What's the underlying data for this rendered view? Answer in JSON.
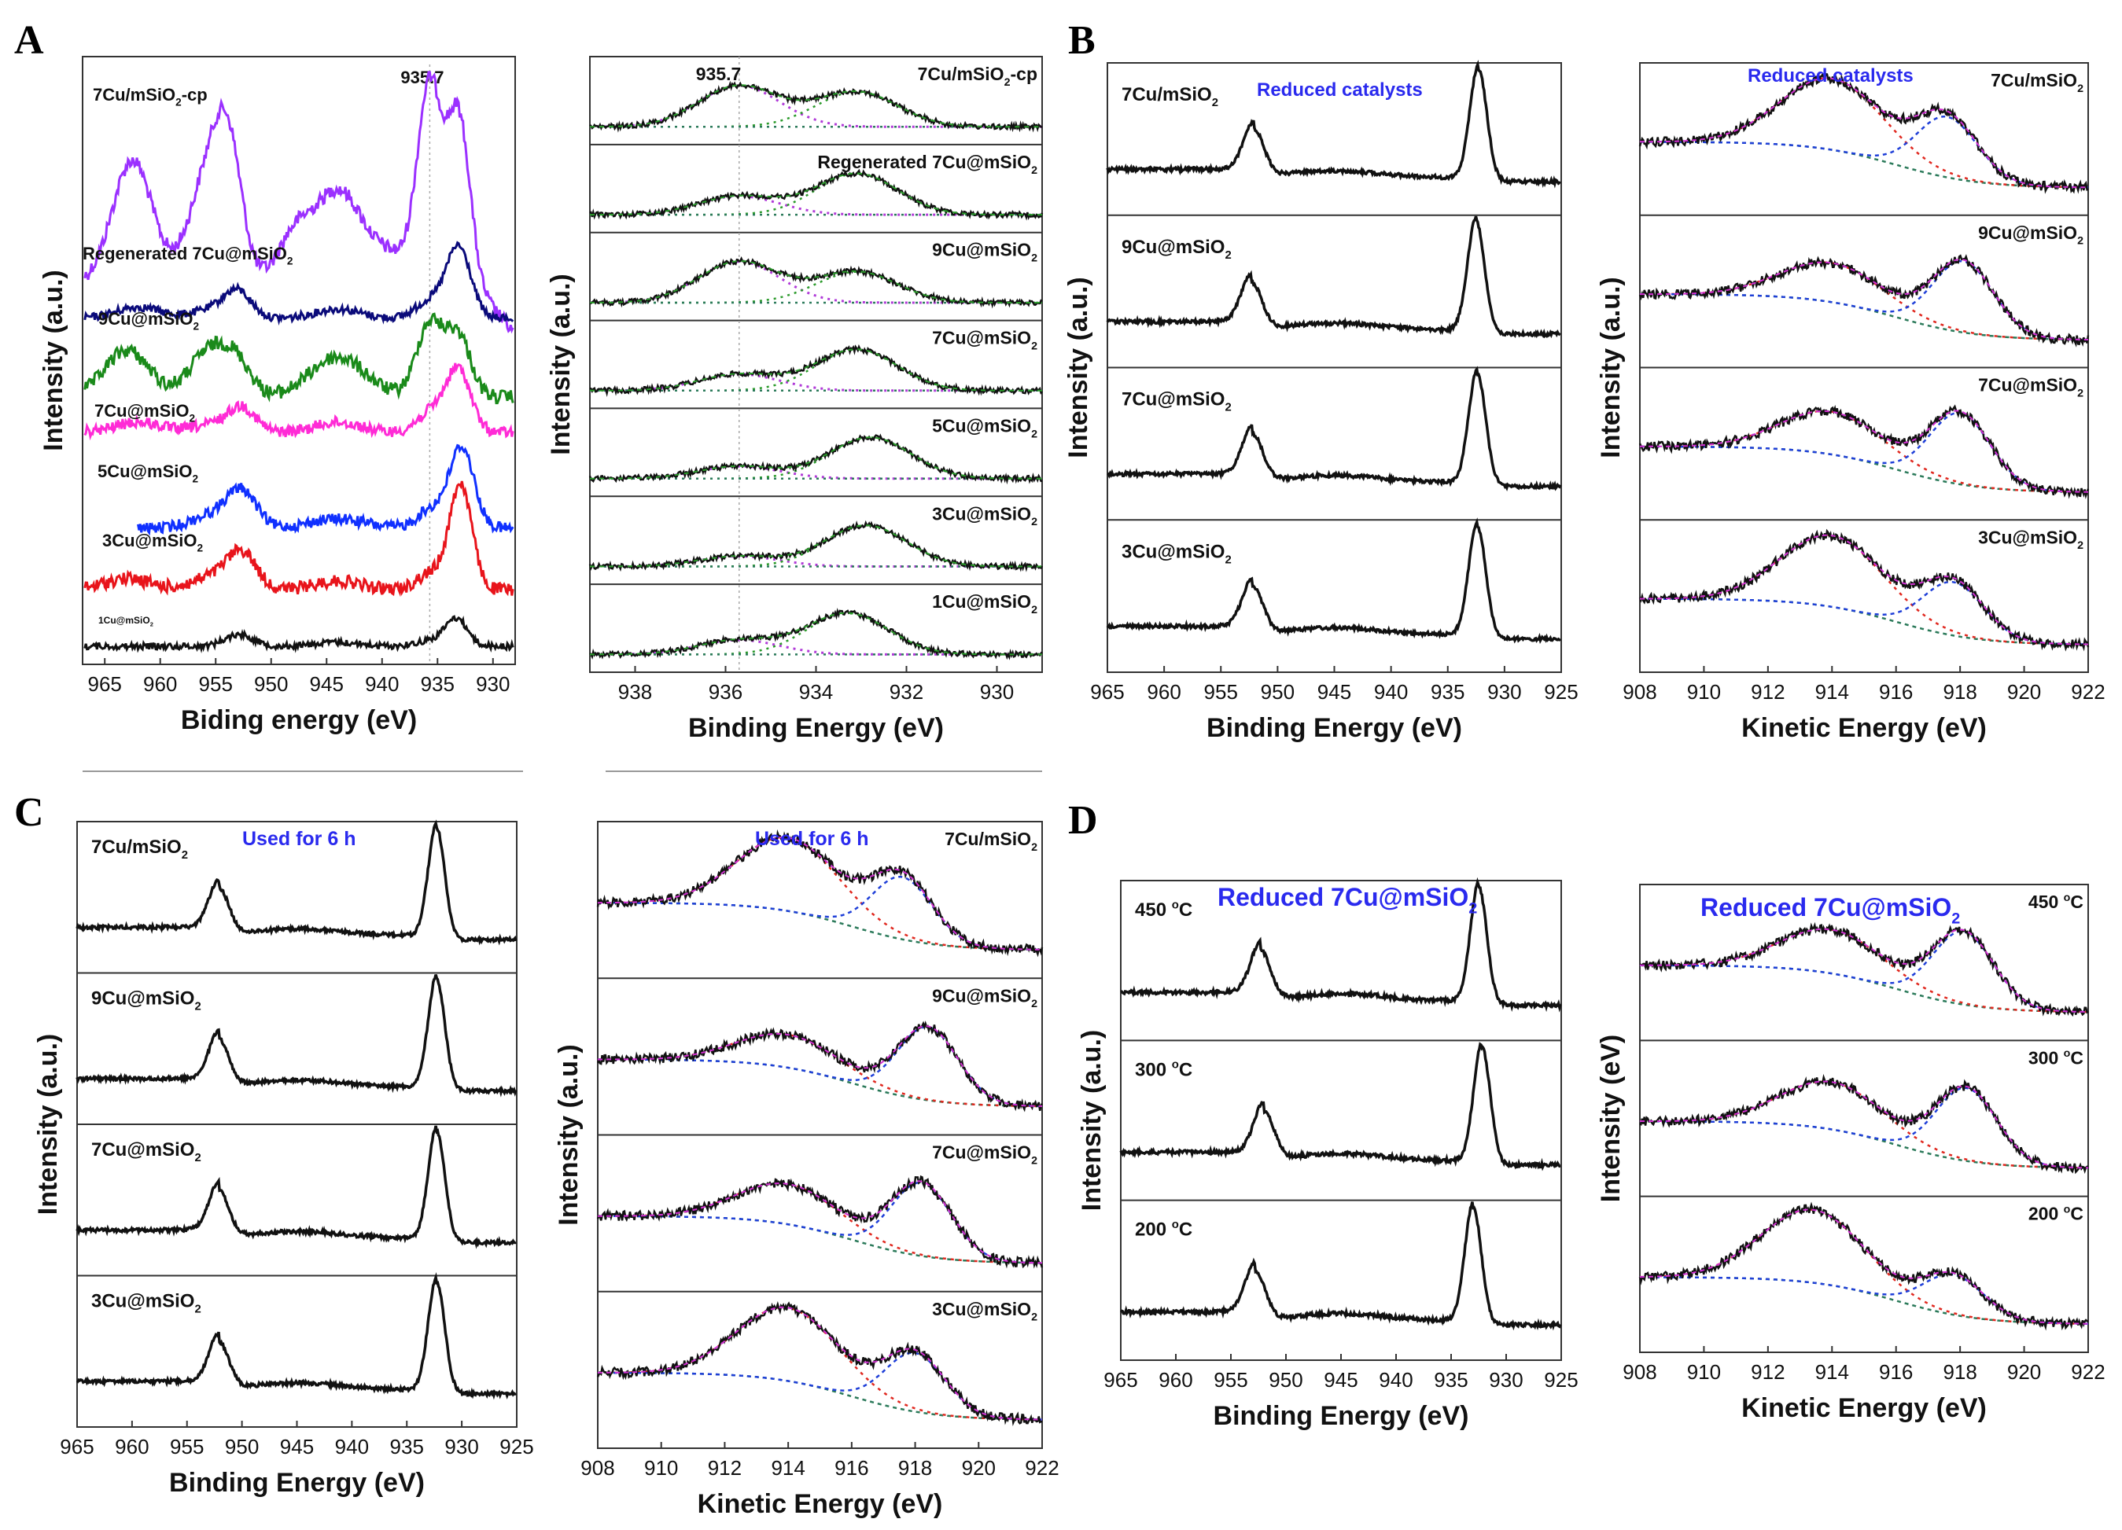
{
  "figure": {
    "panels": [
      "A",
      "B",
      "C",
      "D"
    ]
  },
  "colors": {
    "black": "#111111",
    "purple": "#9b30ff",
    "navy": "#0a0a7a",
    "green": "#1a8a1a",
    "magenta": "#ff2bd6",
    "blue": "#1030ff",
    "red": "#e8141b",
    "fit_green": "#2a9a2a",
    "fit_blue": "#1f3fd8",
    "fit_red": "#e0281f",
    "fit_magenta": "#d12ed1",
    "fit_darkgreen": "#2b7a5a",
    "fit_purple": "#b03ad8",
    "annot_blue": "#2a2aee"
  },
  "chart_data": [
    {
      "id": "A-left",
      "type": "line",
      "xlabel": "Biding energy (eV)",
      "ylabel": "Intensity (a.u.)",
      "xlim": [
        967,
        928
      ],
      "xticks": [
        "965",
        "960",
        "955",
        "950",
        "945",
        "940",
        "935",
        "930"
      ],
      "xtick_values": [
        965,
        960,
        955,
        950,
        945,
        940,
        935,
        930
      ],
      "annotations": [
        "935.7"
      ],
      "reference_line": 935.7,
      "series": [
        {
          "name": "7Cu/mSiO2-cp",
          "label_main": "7Cu/mSiO",
          "label_sub": "2",
          "label_tail": "-cp",
          "color": "purple",
          "profile": "cp"
        },
        {
          "name": "Regenerated 7Cu@mSiO2",
          "label_main": "Regenerated 7Cu@mSiO",
          "label_sub": "2",
          "label_tail": "",
          "color": "navy",
          "profile": "regen"
        },
        {
          "name": "9Cu@mSiO2",
          "label_main": "9Cu@mSiO",
          "label_sub": "2",
          "label_tail": "",
          "color": "green",
          "profile": "nine"
        },
        {
          "name": "7Cu@mSiO2",
          "label_main": "7Cu@mSiO",
          "label_sub": "2",
          "label_tail": "",
          "color": "magenta",
          "profile": "seven"
        },
        {
          "name": "5Cu@mSiO2",
          "label_main": "5Cu@mSiO",
          "label_sub": "2",
          "label_tail": "",
          "color": "blue",
          "profile": "five"
        },
        {
          "name": "3Cu@mSiO2",
          "label_main": "3Cu@mSiO",
          "label_sub": "2",
          "label_tail": "",
          "color": "red",
          "profile": "three"
        },
        {
          "name": "1Cu@mSiO2",
          "label_main": "1Cu@mSiO",
          "label_sub": "2",
          "label_tail": "",
          "color": "black",
          "profile": "one"
        }
      ]
    },
    {
      "id": "A-right",
      "type": "line",
      "xlabel": "Binding Energy (eV)",
      "ylabel": "Intensity (a.u.)",
      "xlim": [
        939,
        929
      ],
      "xticks": [
        "938",
        "936",
        "934",
        "932",
        "930"
      ],
      "xtick_values": [
        938,
        936,
        934,
        932,
        930
      ],
      "annotations": [
        "935.7"
      ],
      "reference_line": 935.7,
      "series": [
        {
          "name": "7Cu/mSiO2-cp",
          "label_main": "7Cu/mSiO",
          "label_sub": "2",
          "label_tail": "-cp",
          "peaks": [
            [
              935.7,
              1.0
            ],
            [
              933.1,
              0.85
            ]
          ]
        },
        {
          "name": "Regenerated 7Cu@mSiO2",
          "label_main": "Regenerated 7Cu@mSiO",
          "label_sub": "2",
          "label_tail": "",
          "peaks": [
            [
              935.7,
              0.45
            ],
            [
              933.1,
              1.0
            ]
          ]
        },
        {
          "name": "9Cu@mSiO2",
          "label_main": "9Cu@mSiO",
          "label_sub": "2",
          "label_tail": "",
          "peaks": [
            [
              935.7,
              1.0
            ],
            [
              933.1,
              0.75
            ]
          ]
        },
        {
          "name": "7Cu@mSiO2",
          "label_main": "7Cu@mSiO",
          "label_sub": "2",
          "label_tail": "",
          "peaks": [
            [
              935.7,
              0.4
            ],
            [
              933.1,
              1.0
            ]
          ]
        },
        {
          "name": "5Cu@mSiO2",
          "label_main": "5Cu@mSiO",
          "label_sub": "2",
          "label_tail": "",
          "peaks": [
            [
              935.7,
              0.3
            ],
            [
              932.8,
              1.0
            ]
          ]
        },
        {
          "name": "3Cu@mSiO2",
          "label_main": "3Cu@mSiO",
          "label_sub": "2",
          "label_tail": "",
          "peaks": [
            [
              935.7,
              0.25
            ],
            [
              932.9,
              1.0
            ]
          ]
        },
        {
          "name": "1Cu@mSiO2",
          "label_main": "1Cu@mSiO",
          "label_sub": "2",
          "label_tail": "",
          "peaks": [
            [
              935.7,
              0.35
            ],
            [
              933.3,
              1.0
            ]
          ]
        }
      ]
    },
    {
      "id": "B-left",
      "type": "line",
      "xlabel": "Binding Energy (eV)",
      "ylabel": "Intensity (a.u.)",
      "xlim": [
        965,
        925
      ],
      "xticks": [
        "965",
        "960",
        "955",
        "950",
        "945",
        "940",
        "935",
        "930",
        "925"
      ],
      "xtick_values": [
        965,
        960,
        955,
        950,
        945,
        940,
        935,
        930,
        925
      ],
      "annotation": "Reduced catalysts",
      "series": [
        {
          "name": "7Cu/mSiO2",
          "label_main": "7Cu/mSiO",
          "label_sub": "2",
          "label_tail": "",
          "main_peak": 932.3,
          "sat_peak": 952.1
        },
        {
          "name": "9Cu@mSiO2",
          "label_main": "9Cu@mSiO",
          "label_sub": "2",
          "label_tail": "",
          "main_peak": 932.5,
          "sat_peak": 952.3
        },
        {
          "name": "7Cu@mSiO2",
          "label_main": "7Cu@mSiO",
          "label_sub": "2",
          "label_tail": "",
          "main_peak": 932.4,
          "sat_peak": 952.2
        },
        {
          "name": "3Cu@mSiO2",
          "label_main": "3Cu@mSiO",
          "label_sub": "2",
          "label_tail": "",
          "main_peak": 932.4,
          "sat_peak": 952.2
        }
      ]
    },
    {
      "id": "B-right",
      "type": "line",
      "xlabel": "Kinetic Energy (eV)",
      "ylabel": "Intensity (a.u.)",
      "xlim": [
        908,
        922
      ],
      "xticks": [
        "908",
        "910",
        "912",
        "914",
        "916",
        "918",
        "920",
        "922"
      ],
      "xtick_values": [
        908,
        910,
        912,
        914,
        916,
        918,
        920,
        922
      ],
      "annotation": "Reduced catalysts",
      "series": [
        {
          "name": "7Cu/mSiO2",
          "label_main": "7Cu/mSiO",
          "label_sub": "2",
          "label_tail": "",
          "peaks": [
            [
              914.0,
              1.0
            ],
            [
              917.6,
              0.85
            ]
          ]
        },
        {
          "name": "9Cu@mSiO2",
          "label_main": "9Cu@mSiO",
          "label_sub": "2",
          "label_tail": "",
          "peaks": [
            [
              914.0,
              0.55
            ],
            [
              918.1,
              1.0
            ]
          ]
        },
        {
          "name": "7Cu@mSiO2",
          "label_main": "7Cu@mSiO",
          "label_sub": "2",
          "label_tail": "",
          "peaks": [
            [
              914.0,
              0.6
            ],
            [
              918.0,
              1.0
            ]
          ]
        },
        {
          "name": "3Cu@mSiO2",
          "label_main": "3Cu@mSiO",
          "label_sub": "2",
          "label_tail": "",
          "peaks": [
            [
              914.0,
              1.0
            ],
            [
              917.8,
              0.75
            ]
          ]
        }
      ]
    },
    {
      "id": "C-left",
      "type": "line",
      "xlabel": "Binding Energy (eV)",
      "ylabel": "Intensity (a.u.)",
      "xlim": [
        965,
        925
      ],
      "xticks": [
        "965",
        "960",
        "955",
        "950",
        "945",
        "940",
        "935",
        "930",
        "925"
      ],
      "xtick_values": [
        965,
        960,
        955,
        950,
        945,
        940,
        935,
        930,
        925
      ],
      "annotation": "Used for 6 h",
      "series": [
        {
          "name": "7Cu/mSiO2",
          "label_main": "7Cu/mSiO",
          "label_sub": "2",
          "label_tail": "",
          "main_peak": 932.3,
          "sat_peak": 952.1
        },
        {
          "name": "9Cu@mSiO2",
          "label_main": "9Cu@mSiO",
          "label_sub": "2",
          "label_tail": "",
          "main_peak": 932.3,
          "sat_peak": 952.1
        },
        {
          "name": "7Cu@mSiO2",
          "label_main": "7Cu@mSiO",
          "label_sub": "2",
          "label_tail": "",
          "main_peak": 932.3,
          "sat_peak": 952.1
        },
        {
          "name": "3Cu@mSiO2",
          "label_main": "3Cu@mSiO",
          "label_sub": "2",
          "label_tail": "",
          "main_peak": 932.3,
          "sat_peak": 952.1
        }
      ]
    },
    {
      "id": "C-right",
      "type": "line",
      "xlabel": "Kinetic Energy (eV)",
      "ylabel": "Intensity (a.u.)",
      "xlim": [
        908,
        922
      ],
      "xticks": [
        "908",
        "910",
        "912",
        "914",
        "916",
        "918",
        "920",
        "922"
      ],
      "xtick_values": [
        908,
        910,
        912,
        914,
        916,
        918,
        920,
        922
      ],
      "annotation": "Used for 6 h",
      "series": [
        {
          "name": "7Cu/mSiO2",
          "label_main": "7Cu/mSiO",
          "label_sub": "2",
          "label_tail": "",
          "peaks": [
            [
              914.0,
              1.0
            ],
            [
              917.6,
              0.85
            ]
          ]
        },
        {
          "name": "9Cu@mSiO2",
          "label_main": "9Cu@mSiO",
          "label_sub": "2",
          "label_tail": "",
          "peaks": [
            [
              914.0,
              0.45
            ],
            [
              918.4,
              1.0
            ]
          ]
        },
        {
          "name": "7Cu@mSiO2",
          "label_main": "7Cu@mSiO",
          "label_sub": "2",
          "label_tail": "",
          "peaks": [
            [
              914.0,
              0.55
            ],
            [
              918.2,
              1.0
            ]
          ]
        },
        {
          "name": "3Cu@mSiO2",
          "label_main": "3Cu@mSiO",
          "label_sub": "2",
          "label_tail": "",
          "peaks": [
            [
              914.0,
              1.0
            ],
            [
              918.0,
              0.8
            ]
          ]
        }
      ]
    },
    {
      "id": "D-left",
      "type": "line",
      "xlabel": "Binding Energy (eV)",
      "ylabel": "Intensity (a.u.)",
      "xlim": [
        965,
        925
      ],
      "xticks": [
        "965",
        "960",
        "955",
        "950",
        "945",
        "940",
        "935",
        "930",
        "925"
      ],
      "xtick_values": [
        965,
        960,
        955,
        950,
        945,
        940,
        935,
        930,
        925
      ],
      "annotation": "Reduced 7Cu@mSiO",
      "annotation_sub": "2",
      "series": [
        {
          "name": "450 °C",
          "label_main": "450 ",
          "label_sup": "o",
          "label_tail": "C",
          "main_peak": 932.5,
          "sat_peak": 952.3
        },
        {
          "name": "300 °C",
          "label_main": "300 ",
          "label_sup": "o",
          "label_tail": "C",
          "main_peak": 932.2,
          "sat_peak": 952.0
        },
        {
          "name": "200 °C",
          "label_main": "200 ",
          "label_sup": "o",
          "label_tail": "C",
          "main_peak": 933.0,
          "sat_peak": 952.8
        }
      ]
    },
    {
      "id": "D-right",
      "type": "line",
      "xlabel": "Kinetic Energy (eV)",
      "ylabel": "Intensity (eV)",
      "xlim": [
        908,
        922
      ],
      "xticks": [
        "908",
        "910",
        "912",
        "914",
        "916",
        "918",
        "920",
        "922"
      ],
      "xtick_values": [
        908,
        910,
        912,
        914,
        916,
        918,
        920,
        922
      ],
      "annotation": "Reduced 7Cu@mSiO",
      "annotation_sub": "2",
      "series": [
        {
          "name": "450 °C",
          "label_main": "450 ",
          "label_sup": "o",
          "label_tail": "C",
          "peaks": [
            [
              914.0,
              0.6
            ],
            [
              918.1,
              1.0
            ]
          ]
        },
        {
          "name": "300 °C",
          "label_main": "300 ",
          "label_sup": "o",
          "label_tail": "C",
          "peaks": [
            [
              914.0,
              0.65
            ],
            [
              918.2,
              1.0
            ]
          ]
        },
        {
          "name": "200 °C",
          "label_main": "200 ",
          "label_sup": "o",
          "label_tail": "C",
          "peaks": [
            [
              913.4,
              1.0
            ],
            [
              917.8,
              0.55
            ]
          ]
        }
      ]
    }
  ]
}
